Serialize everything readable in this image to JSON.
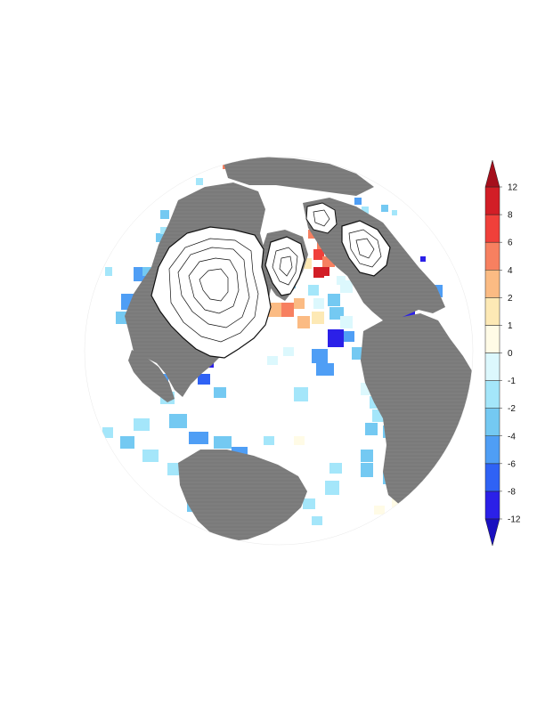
{
  "map": {
    "land_color": "#7a7a7a",
    "ice_sheet_color": "#ffffff",
    "ocean_color": "#ffffff",
    "contour_color": "#111111"
  },
  "colorbar": {
    "levels": [
      "-12",
      "-8",
      "-6",
      "-4",
      "-2",
      "-1",
      "0",
      "1",
      "2",
      "4",
      "6",
      "8",
      "12"
    ],
    "colors": [
      "#2b20e8",
      "#2f62f5",
      "#4f9ef5",
      "#74c9f2",
      "#a4e6fa",
      "#dcf8fd",
      "#fffbe6",
      "#fde9b5",
      "#fbbb83",
      "#f78060",
      "#f0403a",
      "#d21e26"
    ],
    "extend_low_color": "#1a10c0",
    "extend_high_color": "#a50f1c"
  }
}
